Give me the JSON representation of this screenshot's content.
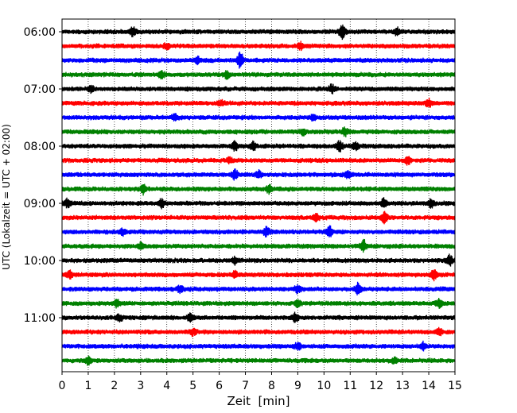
{
  "chart_data": {
    "type": "line",
    "title": "",
    "xlabel": "Zeit  [min]",
    "ylabel": "UTC (Lokalzeit = UTC + 02:00)",
    "xlim": [
      0,
      15
    ],
    "x_ticks": [
      "0",
      "1",
      "2",
      "3",
      "4",
      "5",
      "6",
      "7",
      "8",
      "9",
      "10",
      "11",
      "12",
      "13",
      "14",
      "15"
    ],
    "y_ticks": [
      "06:00",
      "07:00",
      "08:00",
      "09:00",
      "10:00",
      "11:00"
    ],
    "grid": "vertical dotted",
    "colors_cycle": [
      "#000000",
      "#ff0000",
      "#0000ff",
      "#008000"
    ],
    "series": [
      {
        "start": "06:00",
        "color": "#000000",
        "events": [
          [
            2.7,
            1.4
          ],
          [
            10.7,
            2.6
          ],
          [
            12.8,
            1.1
          ]
        ]
      },
      {
        "start": "06:15",
        "color": "#ff0000",
        "events": [
          [
            9.1,
            1.2
          ],
          [
            4.0,
            0.9
          ]
        ]
      },
      {
        "start": "06:30",
        "color": "#0000ff",
        "events": [
          [
            6.8,
            3.0
          ],
          [
            5.2,
            1.0
          ]
        ]
      },
      {
        "start": "06:45",
        "color": "#008000",
        "events": [
          [
            3.8,
            1.3
          ],
          [
            6.3,
            1.2
          ]
        ]
      },
      {
        "start": "07:00",
        "color": "#000000",
        "events": [
          [
            1.1,
            1.1
          ],
          [
            10.3,
            1.2
          ]
        ]
      },
      {
        "start": "07:15",
        "color": "#ff0000",
        "events": [
          [
            14.0,
            1.3
          ],
          [
            6.1,
            0.9
          ]
        ]
      },
      {
        "start": "07:30",
        "color": "#0000ff",
        "events": [
          [
            4.3,
            0.9
          ],
          [
            9.6,
            0.9
          ]
        ]
      },
      {
        "start": "07:45",
        "color": "#008000",
        "events": [
          [
            10.8,
            1.5
          ],
          [
            9.2,
            1.0
          ]
        ]
      },
      {
        "start": "08:00",
        "color": "#000000",
        "events": [
          [
            6.6,
            1.5
          ],
          [
            7.3,
            1.4
          ],
          [
            10.6,
            1.6
          ],
          [
            11.2,
            1.3
          ]
        ]
      },
      {
        "start": "08:15",
        "color": "#ff0000",
        "events": [
          [
            13.2,
            1.2
          ],
          [
            6.4,
            0.9
          ]
        ]
      },
      {
        "start": "08:30",
        "color": "#0000ff",
        "events": [
          [
            6.6,
            1.6
          ],
          [
            7.5,
            1.2
          ],
          [
            10.9,
            1.2
          ]
        ]
      },
      {
        "start": "08:45",
        "color": "#008000",
        "events": [
          [
            3.1,
            1.5
          ],
          [
            7.9,
            1.2
          ]
        ]
      },
      {
        "start": "09:00",
        "color": "#000000",
        "events": [
          [
            0.2,
            1.4
          ],
          [
            3.8,
            1.3
          ],
          [
            12.3,
            1.6
          ],
          [
            14.1,
            1.2
          ]
        ]
      },
      {
        "start": "09:15",
        "color": "#ff0000",
        "events": [
          [
            12.3,
            2.0
          ],
          [
            9.7,
            1.0
          ]
        ]
      },
      {
        "start": "09:30",
        "color": "#0000ff",
        "events": [
          [
            7.8,
            1.5
          ],
          [
            10.2,
            1.8
          ],
          [
            2.3,
            1.0
          ]
        ]
      },
      {
        "start": "09:45",
        "color": "#008000",
        "events": [
          [
            11.5,
            2.0
          ],
          [
            3.0,
            1.1
          ]
        ]
      },
      {
        "start": "10:00",
        "color": "#000000",
        "events": [
          [
            14.8,
            1.6
          ],
          [
            6.6,
            1.0
          ]
        ]
      },
      {
        "start": "10:15",
        "color": "#ff0000",
        "events": [
          [
            0.3,
            1.4
          ],
          [
            14.2,
            1.6
          ],
          [
            6.6,
            1.0
          ]
        ]
      },
      {
        "start": "10:30",
        "color": "#0000ff",
        "events": [
          [
            11.3,
            1.8
          ],
          [
            4.5,
            1.2
          ],
          [
            9.0,
            1.2
          ]
        ]
      },
      {
        "start": "10:45",
        "color": "#008000",
        "events": [
          [
            2.1,
            1.3
          ],
          [
            9.0,
            1.2
          ],
          [
            14.4,
            1.3
          ]
        ]
      },
      {
        "start": "11:00",
        "color": "#000000",
        "events": [
          [
            4.9,
            1.4
          ],
          [
            8.9,
            1.5
          ],
          [
            2.2,
            1.0
          ]
        ]
      },
      {
        "start": "11:15",
        "color": "#ff0000",
        "events": [
          [
            14.4,
            1.2
          ],
          [
            5.0,
            1.0
          ]
        ]
      },
      {
        "start": "11:30",
        "color": "#0000ff",
        "events": [
          [
            13.8,
            1.3
          ],
          [
            9.0,
            1.0
          ]
        ]
      },
      {
        "start": "11:45",
        "color": "#008000",
        "events": [
          [
            1.0,
            1.3
          ],
          [
            12.7,
            1.0
          ]
        ]
      }
    ]
  }
}
